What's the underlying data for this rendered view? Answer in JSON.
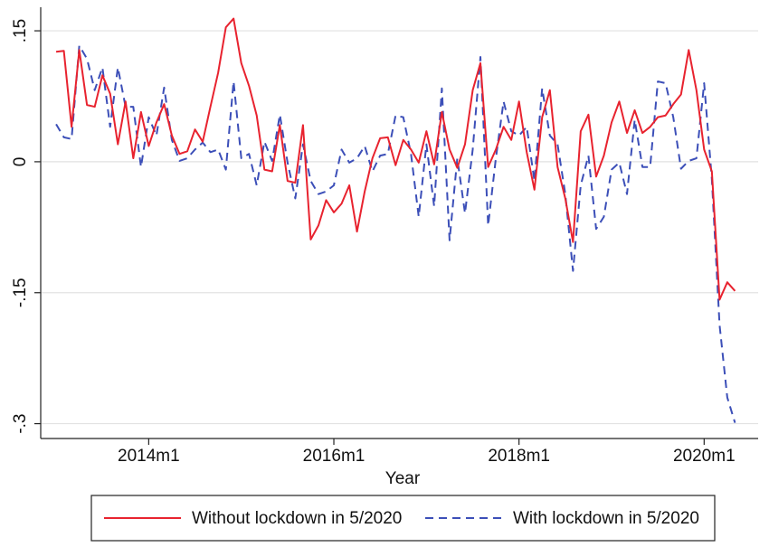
{
  "chart_data": {
    "type": "line",
    "x_label": "Year",
    "x": [
      "2013m1",
      "2013m2",
      "2013m3",
      "2013m4",
      "2013m5",
      "2013m6",
      "2013m7",
      "2013m8",
      "2013m9",
      "2013m10",
      "2013m11",
      "2013m12",
      "2014m1",
      "2014m2",
      "2014m3",
      "2014m4",
      "2014m5",
      "2014m6",
      "2014m7",
      "2014m8",
      "2014m9",
      "2014m10",
      "2014m11",
      "2014m12",
      "2015m1",
      "2015m2",
      "2015m3",
      "2015m4",
      "2015m5",
      "2015m6",
      "2015m7",
      "2015m8",
      "2015m9",
      "2015m10",
      "2015m11",
      "2015m12",
      "2016m1",
      "2016m2",
      "2016m3",
      "2016m4",
      "2016m5",
      "2016m6",
      "2016m7",
      "2016m8",
      "2016m9",
      "2016m10",
      "2016m11",
      "2016m12",
      "2017m1",
      "2017m2",
      "2017m3",
      "2017m4",
      "2017m5",
      "2017m6",
      "2017m7",
      "2017m8",
      "2017m9",
      "2017m10",
      "2017m11",
      "2017m12",
      "2018m1",
      "2018m2",
      "2018m3",
      "2018m4",
      "2018m5",
      "2018m6",
      "2018m7",
      "2018m8",
      "2018m9",
      "2018m10",
      "2018m11",
      "2018m12",
      "2019m1",
      "2019m2",
      "2019m3",
      "2019m4",
      "2019m5",
      "2019m6",
      "2019m7",
      "2019m8",
      "2019m9",
      "2019m10",
      "2019m11",
      "2019m12",
      "2020m1",
      "2020m2",
      "2020m3",
      "2020m4",
      "2020m5"
    ],
    "series": [
      {
        "name": "Without lockdown in 5/2020",
        "color": "#e8232f",
        "dash": "none",
        "values": [
          0.126,
          0.127,
          0.04,
          0.128,
          0.065,
          0.063,
          0.099,
          0.078,
          0.02,
          0.069,
          0.004,
          0.057,
          0.018,
          0.045,
          0.066,
          0.03,
          0.009,
          0.012,
          0.037,
          0.023,
          0.063,
          0.102,
          0.154,
          0.164,
          0.113,
          0.087,
          0.053,
          -0.009,
          -0.011,
          0.042,
          -0.022,
          -0.024,
          0.042,
          -0.089,
          -0.073,
          -0.044,
          -0.058,
          -0.048,
          -0.027,
          -0.08,
          -0.034,
          0.004,
          0.027,
          0.028,
          -0.004,
          0.025,
          0.014,
          -0.001,
          0.035,
          -0.003,
          0.057,
          0.014,
          -0.007,
          0.02,
          0.082,
          0.113,
          -0.006,
          0.014,
          0.04,
          0.025,
          0.069,
          0.011,
          -0.032,
          0.051,
          0.082,
          -0.006,
          -0.042,
          -0.092,
          0.035,
          0.054,
          -0.017,
          0.007,
          0.045,
          0.069,
          0.033,
          0.059,
          0.033,
          0.04,
          0.051,
          0.053,
          0.066,
          0.077,
          0.128,
          0.082,
          0.014,
          -0.011,
          -0.158,
          -0.138,
          -0.148
        ]
      },
      {
        "name": "With lockdown in 5/2020",
        "color": "#3c4fb8",
        "dash": "9 6",
        "values": [
          0.043,
          0.028,
          0.026,
          0.133,
          0.118,
          0.082,
          0.108,
          0.04,
          0.108,
          0.063,
          0.063,
          -0.006,
          0.051,
          0.03,
          0.085,
          0.025,
          0.001,
          0.004,
          0.014,
          0.022,
          0.011,
          0.014,
          -0.009,
          0.092,
          0.004,
          0.009,
          -0.027,
          0.023,
          0.001,
          0.054,
          -0.001,
          -0.042,
          0.02,
          -0.022,
          -0.037,
          -0.034,
          -0.027,
          0.014,
          -0.001,
          0.004,
          0.018,
          -0.011,
          0.007,
          0.009,
          0.053,
          0.051,
          0.009,
          -0.063,
          0.02,
          -0.051,
          0.084,
          -0.09,
          0.004,
          -0.059,
          0.014,
          0.12,
          -0.073,
          0.004,
          0.069,
          0.035,
          0.03,
          0.04,
          -0.022,
          0.084,
          0.03,
          0.02,
          -0.037,
          -0.125,
          -0.027,
          0.007,
          -0.077,
          -0.063,
          -0.009,
          -0.001,
          -0.037,
          0.048,
          -0.006,
          -0.006,
          0.092,
          0.09,
          0.051,
          -0.008,
          0.001,
          0.004,
          0.09,
          -0.02,
          -0.187,
          -0.27,
          -0.299
        ]
      }
    ],
    "xlim": [
      "2012m11",
      "2020m8"
    ],
    "xticks": [
      "2014m1",
      "2016m1",
      "2018m1",
      "2020m1"
    ],
    "ylim": [
      -0.317,
      0.177
    ],
    "yticks": [
      {
        "value": 0.15,
        "label": ".15"
      },
      0,
      {
        "value": -0.15,
        "label": "-.15"
      },
      {
        "value": -0.3,
        "label": "-.3"
      }
    ],
    "grid": true,
    "legend": "bottom"
  }
}
